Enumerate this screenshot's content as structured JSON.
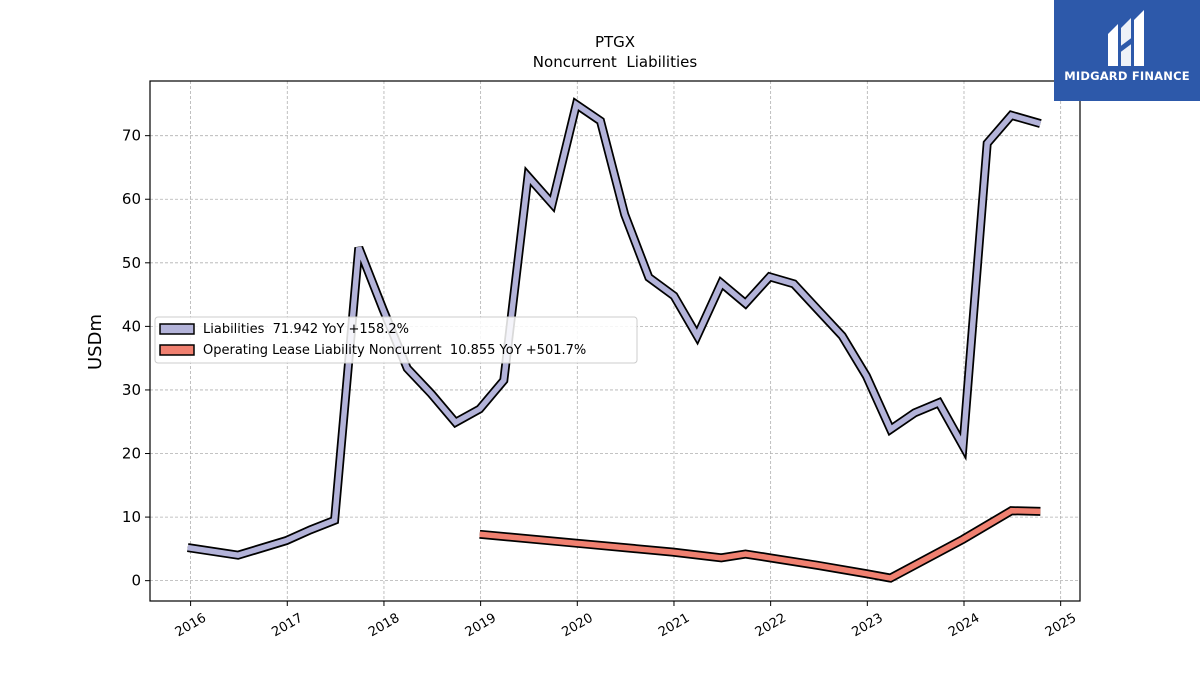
{
  "logo": {
    "text": "MIDGARD FINANCE",
    "icon": "midgard-logo-icon",
    "background": "#2d59aa"
  },
  "chart_data": {
    "type": "line",
    "title": "PTGX",
    "subtitle": "Noncurrent  Liabilities",
    "xlabel": "",
    "ylabel": "USDm",
    "xlim": [
      2015.58,
      2025.2
    ],
    "ylim": [
      -3.2,
      78.6
    ],
    "x_ticks": [
      "2016",
      "2017",
      "2018",
      "2019",
      "2020",
      "2021",
      "2022",
      "2023",
      "2024",
      "2025"
    ],
    "y_ticks": [
      "0",
      "10",
      "20",
      "30",
      "40",
      "50",
      "60",
      "70"
    ],
    "grid": true,
    "legend_position": "center-left",
    "series": [
      {
        "name": "Liabilities  71.942 YoY +158.2%",
        "color": "#b3b3d9",
        "points": [
          [
            2015.97,
            5.2
          ],
          [
            2016.49,
            4.0
          ],
          [
            2016.99,
            6.3
          ],
          [
            2017.24,
            8.0
          ],
          [
            2017.49,
            9.5
          ],
          [
            2017.74,
            52.4
          ],
          [
            2017.99,
            42.7
          ],
          [
            2018.24,
            33.4
          ],
          [
            2018.49,
            29.4
          ],
          [
            2018.74,
            24.9
          ],
          [
            2018.99,
            27.0
          ],
          [
            2019.24,
            31.5
          ],
          [
            2019.49,
            63.6
          ],
          [
            2019.74,
            59.3
          ],
          [
            2019.99,
            74.9
          ],
          [
            2020.24,
            72.3
          ],
          [
            2020.49,
            57.6
          ],
          [
            2020.74,
            47.7
          ],
          [
            2021.0,
            44.8
          ],
          [
            2021.24,
            38.5
          ],
          [
            2021.49,
            46.8
          ],
          [
            2021.74,
            43.6
          ],
          [
            2021.99,
            47.8
          ],
          [
            2022.24,
            46.7
          ],
          [
            2022.49,
            42.6
          ],
          [
            2022.74,
            38.5
          ],
          [
            2022.99,
            32.2
          ],
          [
            2023.24,
            23.8
          ],
          [
            2023.49,
            26.4
          ],
          [
            2023.74,
            28.0
          ],
          [
            2023.99,
            21.2
          ],
          [
            2024.24,
            68.8
          ],
          [
            2024.49,
            73.2
          ],
          [
            2024.79,
            71.9
          ]
        ]
      },
      {
        "name": "Operating Lease Liability Noncurrent  10.855 YoY +501.7%",
        "color": "#f08070",
        "points": [
          [
            2018.99,
            7.3
          ],
          [
            2019.99,
            5.9
          ],
          [
            2020.99,
            4.5
          ],
          [
            2021.49,
            3.6
          ],
          [
            2021.74,
            4.2
          ],
          [
            2021.99,
            3.6
          ],
          [
            2022.49,
            2.4
          ],
          [
            2022.99,
            1.1
          ],
          [
            2023.24,
            0.4
          ],
          [
            2023.99,
            6.5
          ],
          [
            2024.49,
            11.0
          ],
          [
            2024.79,
            10.9
          ]
        ]
      }
    ]
  }
}
